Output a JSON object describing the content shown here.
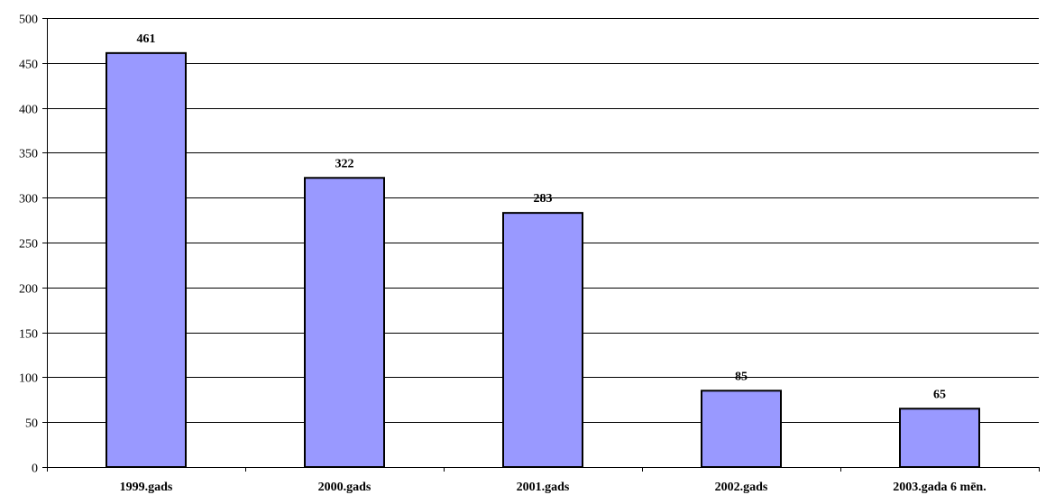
{
  "chart_data": {
    "type": "bar",
    "categories": [
      "1999.gads",
      "2000.gads",
      "2001.gads",
      "2002.gads",
      "2003.gada 6 mēn."
    ],
    "values": [
      461,
      322,
      283,
      85,
      65
    ],
    "data_labels": [
      "461",
      "322",
      "283",
      "85",
      "65"
    ],
    "title": "",
    "xlabel": "",
    "ylabel": "",
    "ylim": [
      0,
      500
    ],
    "yticks": [
      0,
      50,
      100,
      150,
      200,
      250,
      300,
      350,
      400,
      450,
      500
    ],
    "ytick_labels": [
      "0",
      "50",
      "100",
      "150",
      "200",
      "250",
      "300",
      "350",
      "400",
      "450",
      "500"
    ],
    "grid": true,
    "legend": "none",
    "bar_color": "#9999ff",
    "bar_edge_color": "#000000",
    "grid_color": "#000000"
  }
}
